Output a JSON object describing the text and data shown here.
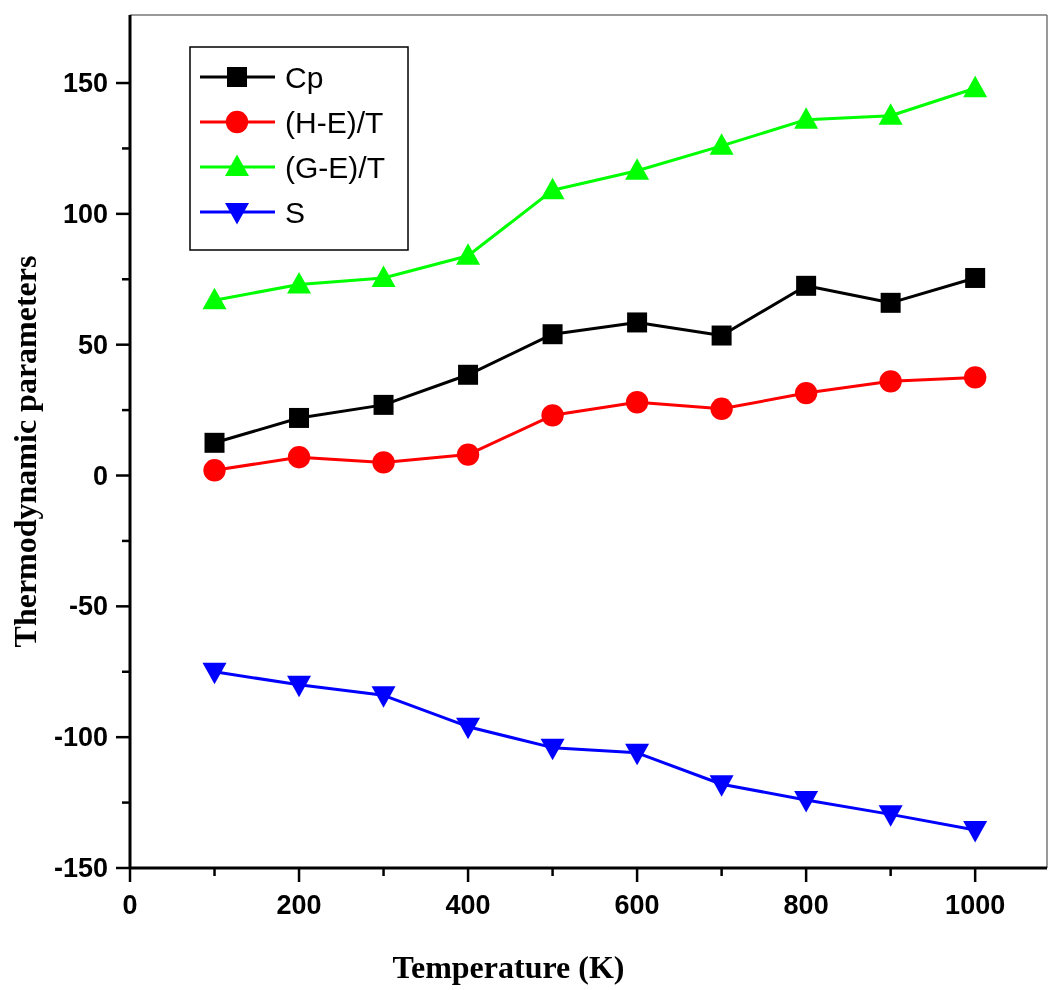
{
  "chart_data": {
    "type": "line",
    "xlabel": "Temperature (K)",
    "ylabel": "Thermodynamic parameters",
    "x": [
      100,
      200,
      300,
      400,
      500,
      600,
      700,
      800,
      900,
      1000
    ],
    "series": [
      {
        "name": "Cp",
        "color": "#000000",
        "marker": "square",
        "values": [
          12.5,
          22,
          27,
          38.5,
          54,
          58.5,
          53.5,
          72.5,
          66,
          75.5
        ]
      },
      {
        "name": "(H-E)/T",
        "color": "#ff0000",
        "marker": "circle",
        "values": [
          2,
          7,
          5,
          8,
          23,
          28,
          25.5,
          31.5,
          36,
          37.5
        ]
      },
      {
        "name": "(G-E)/T",
        "color": "#00ff00",
        "marker": "triangle",
        "values": [
          67,
          73,
          75.5,
          84,
          109,
          116.5,
          126,
          136,
          137.5,
          148
        ]
      },
      {
        "name": "S",
        "color": "#0000ff",
        "marker": "triangle-down",
        "values": [
          -75,
          -80,
          -84,
          -96,
          -104,
          -106,
          -118,
          -124,
          -129.5,
          -135.5
        ]
      }
    ],
    "xlim": [
      0,
      1085
    ],
    "xticks": [
      0,
      {
        "value": 100,
        "label": null
      },
      200,
      {
        "value": 300,
        "label": null
      },
      400,
      {
        "value": 500,
        "label": null
      },
      600,
      {
        "value": 700,
        "label": null
      },
      800,
      {
        "value": 900,
        "label": null
      },
      1000
    ],
    "ylim": [
      -150,
      176
    ],
    "yticks": [
      -150,
      {
        "value": -125,
        "label": null
      },
      -100,
      {
        "value": -75,
        "label": null
      },
      -50,
      {
        "value": -25,
        "label": null
      },
      0,
      {
        "value": 25,
        "label": null
      },
      50,
      {
        "value": 75,
        "label": null
      },
      100,
      {
        "value": 125,
        "label": null
      },
      150
    ],
    "grid": false,
    "legend": "top left",
    "line_style": "solid"
  }
}
